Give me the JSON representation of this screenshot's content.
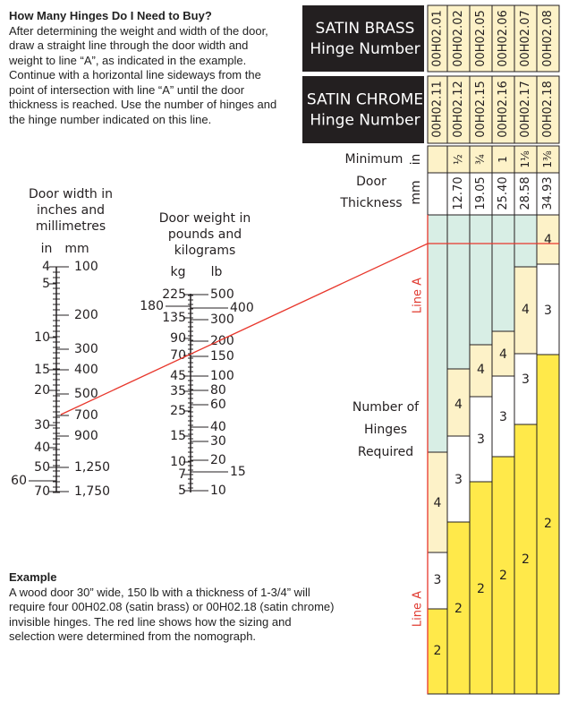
{
  "instructions": {
    "title": "How Many Hinges Do I Need to Buy?",
    "body": "After determining the weight and width of the door, draw a straight line through the door width and weight to line “A”, as indicated in the example. Continue with a horizontal line sideways from the point of intersection with line “A” until the door thickness is reached. Use the number of hinges and the hinge number indicated on this line."
  },
  "example": {
    "title": "Example",
    "body": "A wood door 30” wide, 150 lb with a thickness of 1-3/4” will require four 00H02.08 (satin brass) or 00H02.18 (satin chrome) invisible hinges. The red line shows how the sizing and selection were determined from the nomograph."
  },
  "width_scale": {
    "title": [
      "Door width in",
      "inches and",
      "millimetres"
    ],
    "left_unit": "in",
    "right_unit": "mm",
    "left_labels": [
      4,
      5,
      10,
      15,
      20,
      30,
      40,
      50,
      60,
      70
    ],
    "right_labels": [
      "100",
      "200",
      "300",
      "400",
      "500",
      "700",
      "900",
      "1,250",
      "1,750"
    ]
  },
  "weight_scale": {
    "title": [
      "Door weight in",
      "pounds and",
      "kilograms"
    ],
    "left_unit": "kg",
    "right_unit": "lb",
    "left_labels": [
      225,
      180,
      135,
      90,
      70,
      45,
      35,
      25,
      15,
      10,
      7,
      5
    ],
    "right_labels": [
      500,
      400,
      300,
      200,
      150,
      100,
      80,
      60,
      40,
      30,
      20,
      15,
      10
    ]
  },
  "table": {
    "brass_header": [
      "SATIN BRASS",
      "Hinge Number"
    ],
    "chrome_header": [
      "SATIN CHROME",
      "Hinge Number"
    ],
    "thickness_header": {
      "minimum": "Minimum",
      "in": "in",
      "door_thickness": [
        "Door",
        "Thickness"
      ],
      "mm": "mm"
    },
    "columns": [
      {
        "brass": "00H02.01",
        "chrome": "00H02.11",
        "in": null,
        "mm": null,
        "hinges": [
          "4",
          "3",
          "2"
        ]
      },
      {
        "brass": "00H02.02",
        "chrome": "00H02.12",
        "in": "½",
        "mm": "12.70",
        "hinges": [
          "4",
          "3",
          "2"
        ]
      },
      {
        "brass": "00H02.05",
        "chrome": "00H02.15",
        "in": "¾",
        "mm": "19.05",
        "hinges": [
          "4",
          "3",
          "2"
        ]
      },
      {
        "brass": "00H02.06",
        "chrome": "00H02.16",
        "in": "1",
        "mm": "25.40",
        "hinges": [
          "4",
          "3",
          "2"
        ]
      },
      {
        "brass": "00H02.07",
        "chrome": "00H02.17",
        "in": "1⅛",
        "mm": "28.58",
        "hinges": [
          "4",
          "3",
          "2"
        ]
      },
      {
        "brass": "00H02.08",
        "chrome": "00H02.18",
        "in": "1⅜",
        "mm": "34.93",
        "hinges": [
          "4",
          "3",
          "2"
        ]
      }
    ],
    "hinges_label": [
      "Number of",
      "Hinges",
      "Required"
    ],
    "line_a_labels": [
      "Line A",
      "Line A"
    ]
  }
}
